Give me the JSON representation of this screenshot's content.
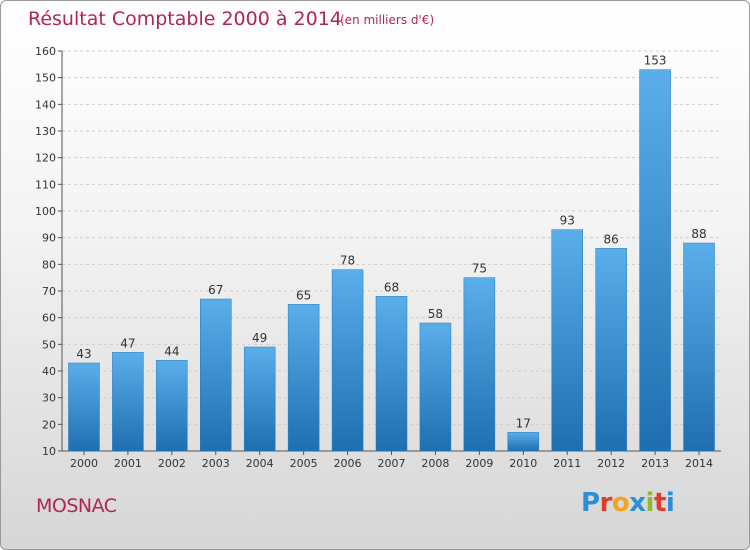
{
  "header": {
    "title": "Résultat Comptable 2000 à 2014",
    "subtitle": "(en milliers d'€)"
  },
  "footer": {
    "commune": "MOSNAC",
    "logo_text": "Proxiti",
    "logo_colors": [
      "#2a8fd6",
      "#e23b2e",
      "#f2a41c",
      "#2a8fd6",
      "#8dbb2e",
      "#e23b2e",
      "#2a8fd6"
    ]
  },
  "colors": {
    "bar_top": "#5aaeea",
    "bar_bottom": "#1f6fb0",
    "grid": "#cccccc",
    "title": "#b0264f"
  },
  "chart_data": {
    "type": "bar",
    "title": "Résultat Comptable 2000 à 2014",
    "subtitle": "(en milliers d'€)",
    "categories": [
      "2000",
      "2001",
      "2002",
      "2003",
      "2004",
      "2005",
      "2006",
      "2007",
      "2008",
      "2009",
      "2010",
      "2011",
      "2012",
      "2013",
      "2014"
    ],
    "values": [
      43,
      47,
      44,
      67,
      49,
      65,
      78,
      68,
      58,
      75,
      17,
      93,
      86,
      153,
      88
    ],
    "ylim": [
      10,
      160
    ],
    "yticks": [
      10,
      20,
      30,
      40,
      50,
      60,
      70,
      80,
      90,
      100,
      110,
      120,
      130,
      140,
      150,
      160
    ],
    "grid": true,
    "xlabel": "",
    "ylabel": ""
  }
}
